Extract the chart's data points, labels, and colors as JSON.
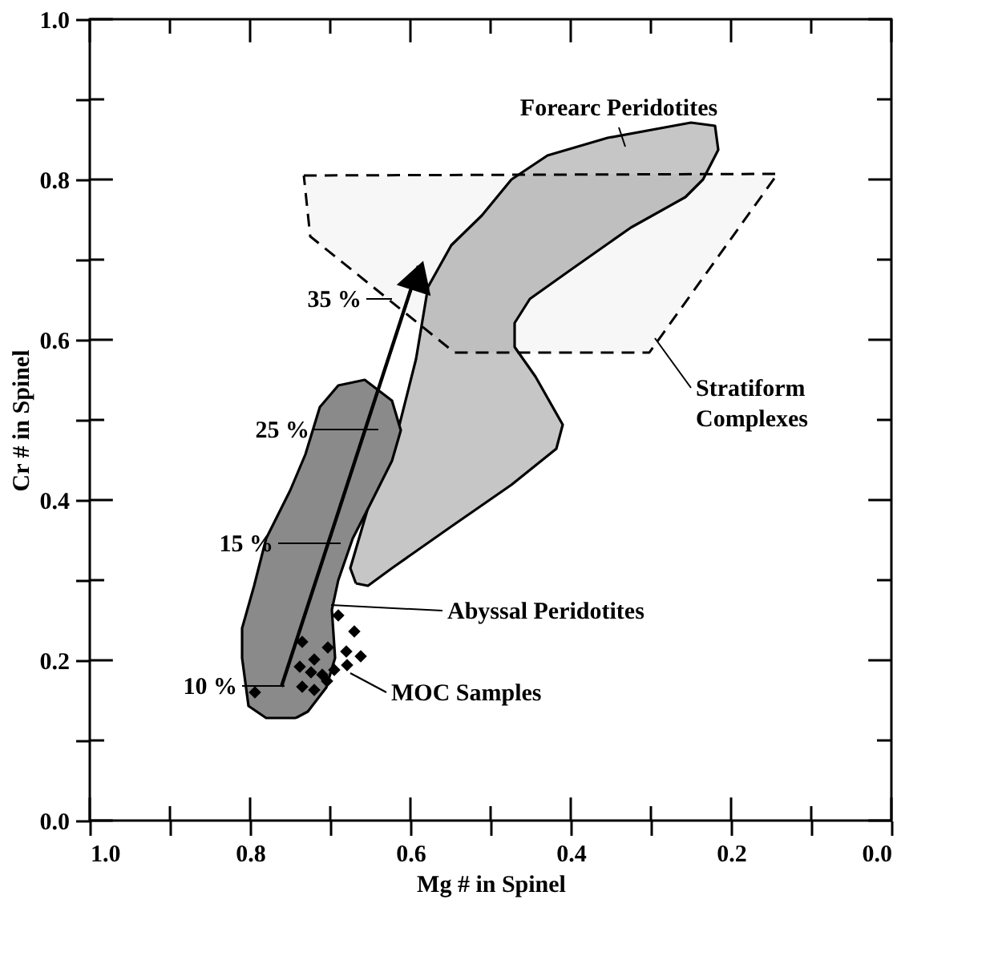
{
  "chart_data": {
    "type": "scatter",
    "xlabel": "Mg # in Spinel",
    "ylabel": "Cr # in Spinel",
    "xlim": [
      1.0,
      0.0
    ],
    "ylim": [
      0.0,
      1.0
    ],
    "xticks": [
      {
        "value": 1.0,
        "label": "1.0"
      },
      {
        "value": 0.9,
        "label": null
      },
      {
        "value": 0.8,
        "label": "0.8"
      },
      {
        "value": 0.7,
        "label": null
      },
      {
        "value": 0.6,
        "label": "0.6"
      },
      {
        "value": 0.5,
        "label": null
      },
      {
        "value": 0.4,
        "label": "0.4"
      },
      {
        "value": 0.3,
        "label": null
      },
      {
        "value": 0.2,
        "label": "0.2"
      },
      {
        "value": 0.1,
        "label": null
      },
      {
        "value": 0.0,
        "label": "0.0"
      }
    ],
    "yticks": [
      {
        "value": 0.0,
        "label": "0.0"
      },
      {
        "value": 0.1,
        "label": null
      },
      {
        "value": 0.2,
        "label": "0.2"
      },
      {
        "value": 0.3,
        "label": null
      },
      {
        "value": 0.4,
        "label": "0.4"
      },
      {
        "value": 0.5,
        "label": null
      },
      {
        "value": 0.6,
        "label": "0.6"
      },
      {
        "value": 0.7,
        "label": null
      },
      {
        "value": 0.8,
        "label": "0.8"
      },
      {
        "value": 0.9,
        "label": null
      },
      {
        "value": 1.0,
        "label": "1.0"
      }
    ],
    "grid": false,
    "series": [
      {
        "type": "area",
        "color": "#c6c6c6",
        "x": [
          0.668,
          0.675,
          0.653,
          0.623,
          0.593,
          0.578,
          0.549,
          0.511,
          0.474,
          0.429,
          0.354,
          0.25,
          0.22,
          0.216,
          0.235,
          0.257,
          0.325,
          0.399,
          0.451,
          0.47,
          0.47,
          0.444,
          0.41,
          0.418,
          0.474,
          0.549,
          0.623,
          0.653,
          0.668
        ],
        "values": [
          0.296,
          0.315,
          0.39,
          0.457,
          0.576,
          0.666,
          0.718,
          0.755,
          0.8,
          0.83,
          0.852,
          0.871,
          0.867,
          0.837,
          0.8,
          0.778,
          0.74,
          0.688,
          0.651,
          0.621,
          0.591,
          0.554,
          0.494,
          0.464,
          0.419,
          0.367,
          0.315,
          0.293,
          0.296
        ]
      },
      {
        "type": "area",
        "line_style": "dashed",
        "color": "#000000",
        "x": [
          0.733,
          0.142,
          0.302,
          0.545,
          0.725,
          0.733
        ],
        "values": [
          0.805,
          0.807,
          0.584,
          0.584,
          0.729,
          0.805
        ]
      },
      {
        "type": "area",
        "color": "#8a8a8a",
        "x": [
          0.743,
          0.78,
          0.802,
          0.81,
          0.81,
          0.795,
          0.78,
          0.75,
          0.731,
          0.713,
          0.69,
          0.657,
          0.623,
          0.612,
          0.623,
          0.649,
          0.672,
          0.69,
          0.698,
          0.694,
          0.705,
          0.728,
          0.743
        ],
        "values": [
          0.128,
          0.128,
          0.143,
          0.203,
          0.24,
          0.293,
          0.352,
          0.412,
          0.457,
          0.516,
          0.543,
          0.55,
          0.524,
          0.487,
          0.449,
          0.397,
          0.352,
          0.3,
          0.263,
          0.203,
          0.166,
          0.136,
          0.128
        ]
      },
      {
        "marker": "diamond",
        "color": "#000000",
        "x": [
          0.794,
          0.69,
          0.67,
          0.735,
          0.703,
          0.662,
          0.68,
          0.72,
          0.738,
          0.695,
          0.679,
          0.724,
          0.71,
          0.704,
          0.735,
          0.72
        ],
        "values": [
          0.16,
          0.256,
          0.236,
          0.223,
          0.216,
          0.205,
          0.211,
          0.201,
          0.192,
          0.188,
          0.194,
          0.185,
          0.182,
          0.174,
          0.167,
          0.163
        ]
      }
    ],
    "annotations": [
      "10 %",
      "15 %",
      "25 %",
      "35 %",
      "Forearc Peridotites",
      {
        "text": "Stratiform Complexes",
        "x": 0.295,
        "y": 0.602
      },
      "Abyssal Peridotites",
      {
        "text": "MOC Samples",
        "x": 0.675,
        "y": 0.184
      }
    ]
  }
}
